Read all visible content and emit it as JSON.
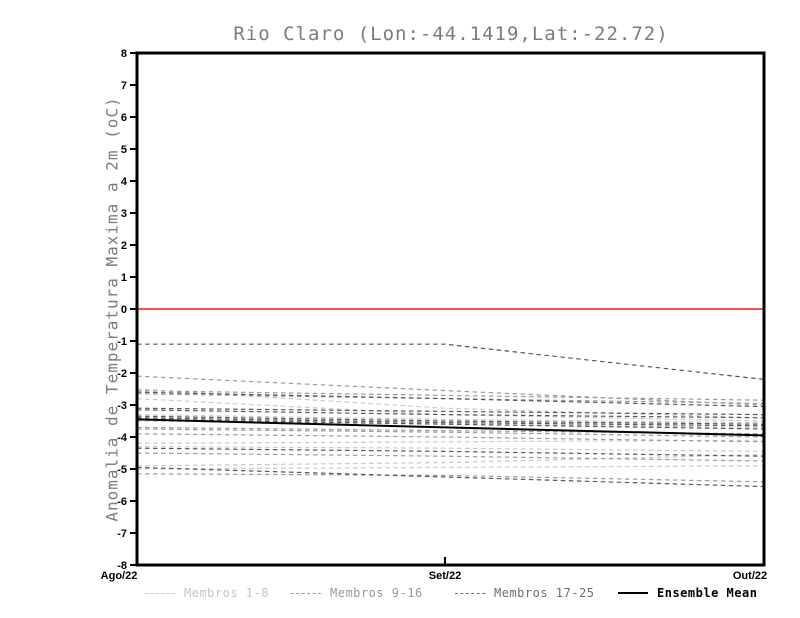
{
  "page": {
    "background": "#ffffff"
  },
  "chart_data": {
    "type": "line",
    "title": "Rio Claro (Lon:-44.1419,Lat:-22.72)",
    "ylabel": "Anomalia de Temperatura Maxima a 2m (oC)",
    "xlabel": "",
    "x_categories": [
      "Ago/22",
      "Set/22",
      "Out/22"
    ],
    "ylim": [
      -8,
      8
    ],
    "yticks": [
      8,
      7,
      6,
      5,
      4,
      3,
      2,
      1,
      0,
      -1,
      -2,
      -3,
      -4,
      -5,
      -6,
      -7,
      -8
    ],
    "grid": false,
    "legend_position": "bottom",
    "axis_color": "#000000",
    "zero_line_color": "#f3524e",
    "groups": [
      {
        "name": "Membros 1-8",
        "color": "#c8c8c8",
        "legend_color": "#c4c4c4",
        "style": "dashed"
      },
      {
        "name": "Membros 9-16",
        "color": "#9b9b9b",
        "legend_color": "#9a9a9a",
        "style": "dashed"
      },
      {
        "name": "Membros 17-25",
        "color": "#565656",
        "legend_color": "#6e6e6e",
        "style": "dashed"
      },
      {
        "name": "Ensemble Mean",
        "color": "#000000",
        "legend_color": "#000000",
        "style": "solid"
      }
    ],
    "series": [
      {
        "name": "m1",
        "group": 0,
        "values": [
          -2.5,
          -3.1,
          -3.4
        ]
      },
      {
        "name": "m2",
        "group": 0,
        "values": [
          -3.3,
          -3.45,
          -3.55
        ]
      },
      {
        "name": "m3",
        "group": 0,
        "values": [
          -3.5,
          -3.6,
          -3.7
        ]
      },
      {
        "name": "m4",
        "group": 0,
        "values": [
          -4.2,
          -4.15,
          -4.1
        ]
      },
      {
        "name": "m5",
        "group": 0,
        "values": [
          -4.3,
          -4.35,
          -4.45
        ]
      },
      {
        "name": "m6",
        "group": 0,
        "values": [
          -4.9,
          -4.8,
          -4.55
        ]
      },
      {
        "name": "m7",
        "group": 0,
        "values": [
          -5.0,
          -4.95,
          -4.9
        ]
      },
      {
        "name": "m8",
        "group": 0,
        "values": [
          -2.8,
          -3.3,
          -3.5
        ]
      },
      {
        "name": "m9",
        "group": 1,
        "values": [
          -2.1,
          -2.55,
          -3.0
        ]
      },
      {
        "name": "m10",
        "group": 1,
        "values": [
          -2.55,
          -2.7,
          -2.85
        ]
      },
      {
        "name": "m11",
        "group": 1,
        "values": [
          -2.65,
          -2.8,
          -2.95
        ]
      },
      {
        "name": "m12",
        "group": 1,
        "values": [
          -3.7,
          -3.8,
          -3.9
        ]
      },
      {
        "name": "m13",
        "group": 1,
        "values": [
          -3.75,
          -3.85,
          -4.0
        ]
      },
      {
        "name": "m14",
        "group": 1,
        "values": [
          -3.9,
          -4.0,
          -4.15
        ]
      },
      {
        "name": "m15",
        "group": 1,
        "values": [
          -4.5,
          -4.6,
          -4.75
        ]
      },
      {
        "name": "m16",
        "group": 1,
        "values": [
          -5.15,
          -5.2,
          -5.4
        ]
      },
      {
        "name": "m17",
        "group": 2,
        "values": [
          -1.1,
          -1.1,
          -2.2
        ]
      },
      {
        "name": "m18",
        "group": 2,
        "values": [
          -2.6,
          -2.8,
          -3.05
        ]
      },
      {
        "name": "m19",
        "group": 2,
        "values": [
          -3.1,
          -3.2,
          -3.3
        ]
      },
      {
        "name": "m20",
        "group": 2,
        "values": [
          -3.15,
          -3.3,
          -3.4
        ]
      },
      {
        "name": "m21",
        "group": 2,
        "values": [
          -3.35,
          -3.5,
          -3.6
        ]
      },
      {
        "name": "m22",
        "group": 2,
        "values": [
          -3.4,
          -3.55,
          -3.65
        ]
      },
      {
        "name": "m23",
        "group": 2,
        "values": [
          -3.45,
          -3.6,
          -3.75
        ]
      },
      {
        "name": "m24",
        "group": 2,
        "values": [
          -4.35,
          -4.45,
          -4.6
        ]
      },
      {
        "name": "m25",
        "group": 2,
        "values": [
          -4.95,
          -5.25,
          -5.55
        ]
      },
      {
        "name": "Ensemble Mean",
        "group": 3,
        "values": [
          -3.45,
          -3.7,
          -3.95
        ]
      }
    ]
  }
}
